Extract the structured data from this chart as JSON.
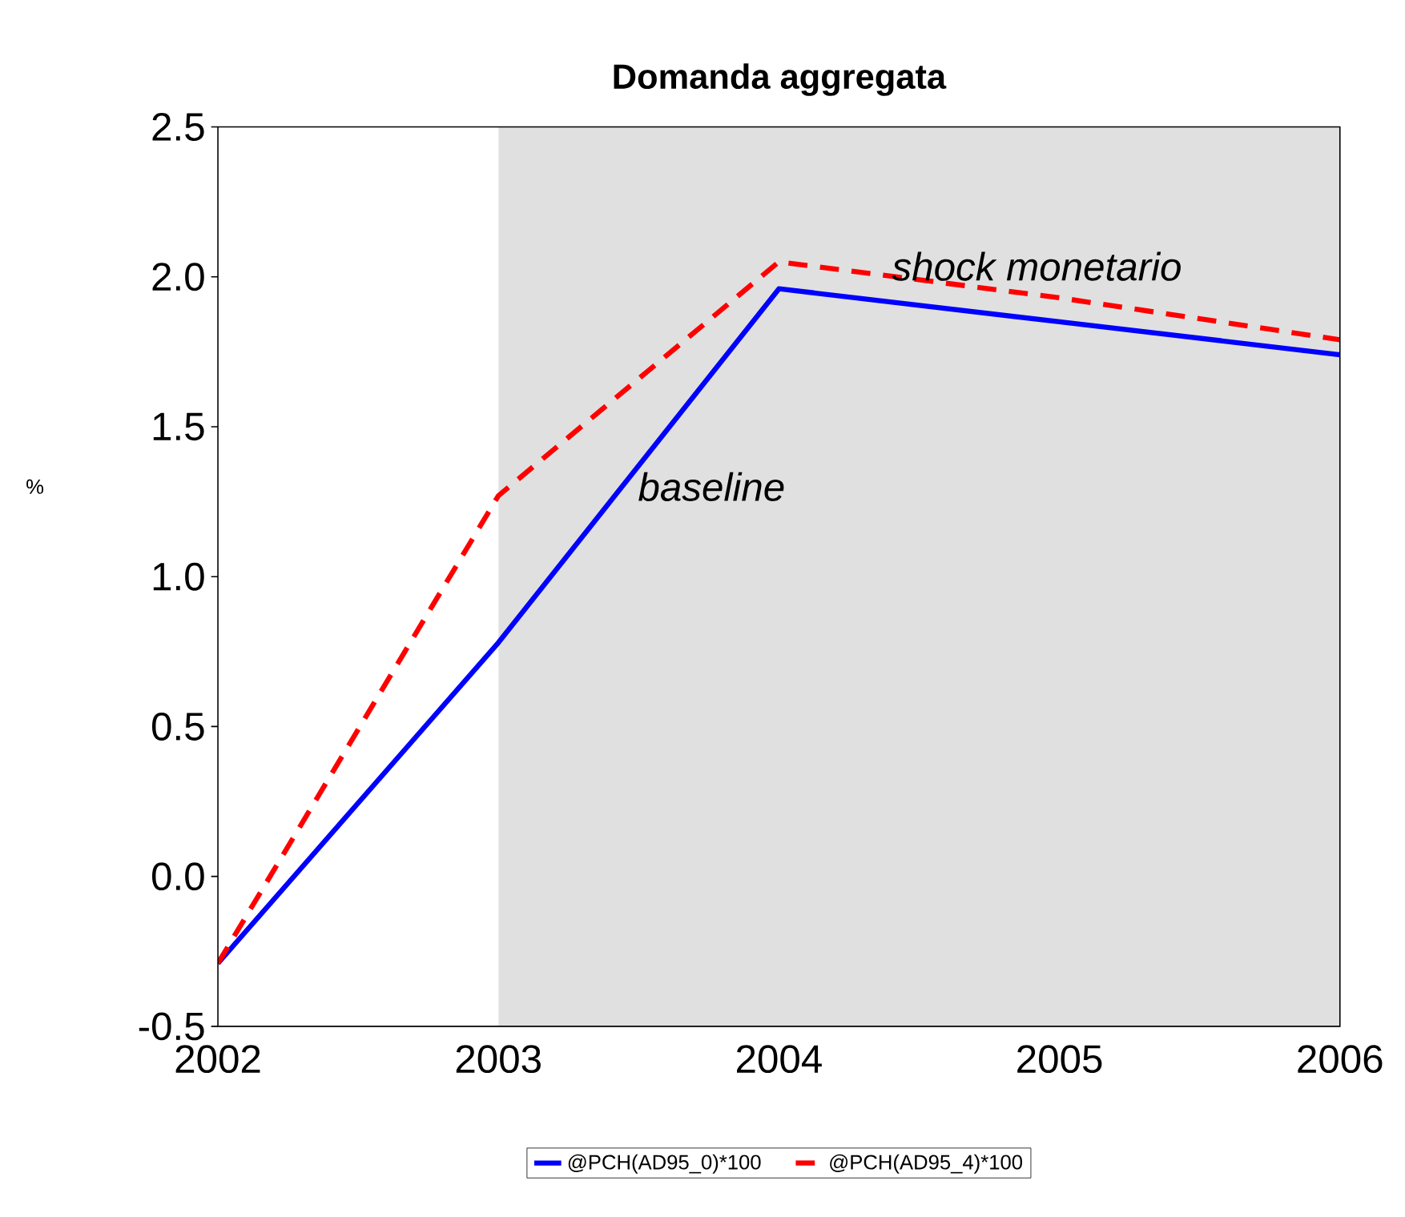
{
  "chart_data": {
    "type": "line",
    "title": "Domanda aggregata",
    "ylabel": "%",
    "x": [
      2002,
      2003,
      2004,
      2005,
      2006
    ],
    "series": [
      {
        "name": "@PCH(AD95_0)*100",
        "color": "#0000ff",
        "line_style": "solid",
        "values": [
          -0.29,
          0.78,
          1.96,
          1.85,
          1.74
        ]
      },
      {
        "name": "@PCH(AD95_4)*100",
        "color": "#ff0000",
        "line_style": "dashed",
        "values": [
          -0.29,
          1.27,
          2.05,
          1.93,
          1.79
        ]
      }
    ],
    "xlim": [
      2002,
      2006
    ],
    "xticks": [
      2002,
      2003,
      2004,
      2005,
      2006
    ],
    "ylim": [
      -0.5,
      2.5
    ],
    "yticks": [
      -0.5,
      {
        "value": 0,
        "label": "0.0"
      },
      0.5,
      {
        "value": 1,
        "label": "1.0"
      },
      1.5,
      {
        "value": 2,
        "label": "2.0"
      },
      2.5
    ],
    "bands": [
      {
        "axis": "x",
        "from": 2003,
        "to": 2006,
        "color": "#e0e0e0"
      }
    ],
    "annotations": [
      "shock monetario",
      "baseline"
    ],
    "grid": false,
    "legend": "bottom",
    "marker": "none"
  }
}
